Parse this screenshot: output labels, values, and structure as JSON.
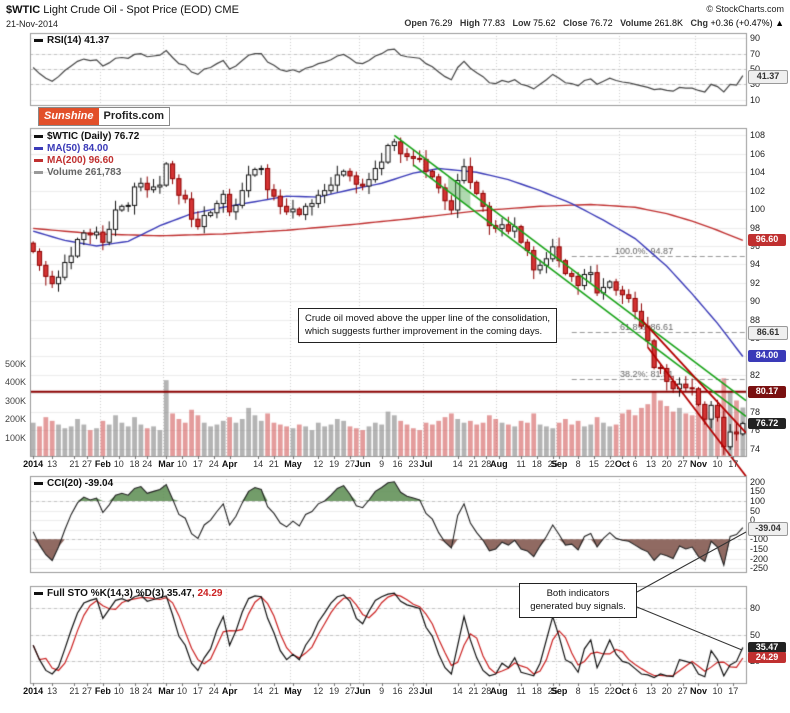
{
  "header": {
    "symbol": "$WTIC",
    "title": " Light Crude Oil - Spot Price (EOD) CME",
    "date": "21-Nov-2014",
    "copyright": "© StockCharts.com",
    "quote": [
      {
        "label": "Open",
        "value": "76.29"
      },
      {
        "label": "High",
        "value": "77.83"
      },
      {
        "label": "Low",
        "value": "75.62"
      },
      {
        "label": "Close",
        "value": "76.72"
      },
      {
        "label": "Volume",
        "value": "261.8K"
      },
      {
        "label": "Chg",
        "value": "+0.36 (+0.47%) ▲"
      }
    ]
  },
  "logo": {
    "sunshine": "Sunshine",
    "profits": "Profits.com"
  },
  "panels": {
    "rsi": {
      "label": "RSI(14) 41.37"
    },
    "main": {
      "legend_symbol": "$WTIC (Daily) 76.72",
      "legend_ma50": "MA(50) 84.00",
      "legend_ma200": "MA(200) 96.60",
      "legend_volume": "Volume 261,783"
    },
    "cci": {
      "label": "CCI(20) -39.04"
    },
    "sto": {
      "label": "Full STO %K(14,3) %D(3)",
      "k_value": "35.47,",
      "d_value": "24.29"
    }
  },
  "annotations": {
    "main_line1": "Crude oil moved above the upper line of the consolidation,",
    "main_line2": "which suggests further improvement in the coming days.",
    "buy_line1": "Both indicators",
    "buy_line2": "generated buy signals."
  },
  "chart_data": {
    "type": "candlestick-with-indicators",
    "title": "$WTIC Light Crude Oil - Spot Price (EOD) CME",
    "sampling_note": "daily data approximated at ~2 trading days per point, Jan 2014 to 21-Nov-2014",
    "first_open": 96.3,
    "closes": [
      95.4,
      93.9,
      92.7,
      91.9,
      92.6,
      94.2,
      94.9,
      96.7,
      97.4,
      97.2,
      97.5,
      96.4,
      97.8,
      99.9,
      100.3,
      100.4,
      102.4,
      102.8,
      102.1,
      102.4,
      102.6,
      104.9,
      103.3,
      101.5,
      101.1,
      98.9,
      98.1,
      99.3,
      99.6,
      100.6,
      101.6,
      99.7,
      100.4,
      102.0,
      103.7,
      104.3,
      104.4,
      102.1,
      101.4,
      100.3,
      99.7,
      100.0,
      99.4,
      100.3,
      100.6,
      101.5,
      102.0,
      102.6,
      103.7,
      104.1,
      103.6,
      102.7,
      102.5,
      103.2,
      104.4,
      105.1,
      106.9,
      107.3,
      106.0,
      105.7,
      105.5,
      105.4,
      104.1,
      103.5,
      102.3,
      100.9,
      99.9,
      103.1,
      104.6,
      102.9,
      101.7,
      100.3,
      98.2,
      97.9,
      98.3,
      97.6,
      98.1,
      96.4,
      95.5,
      93.4,
      93.9,
      94.6,
      95.9,
      94.4,
      93.0,
      92.7,
      91.7,
      92.9,
      93.1,
      90.9,
      91.5,
      92.1,
      91.2,
      90.7,
      90.3,
      88.9,
      87.3,
      85.7,
      82.8,
      82.7,
      81.3,
      80.5,
      81.0,
      80.6,
      80.5,
      78.8,
      77.2,
      78.7,
      77.4,
      74.2,
      75.8,
      75.6,
      76.72
    ],
    "volumes": [
      180,
      160,
      210,
      190,
      170,
      150,
      160,
      200,
      170,
      140,
      150,
      190,
      170,
      220,
      180,
      160,
      210,
      170,
      150,
      160,
      140,
      410,
      230,
      200,
      180,
      250,
      220,
      180,
      160,
      170,
      190,
      210,
      180,
      200,
      260,
      220,
      190,
      230,
      180,
      170,
      160,
      150,
      170,
      160,
      140,
      180,
      160,
      170,
      200,
      190,
      160,
      150,
      140,
      160,
      180,
      170,
      240,
      220,
      190,
      170,
      150,
      140,
      180,
      170,
      190,
      210,
      230,
      200,
      180,
      190,
      170,
      180,
      220,
      200,
      180,
      170,
      160,
      190,
      180,
      230,
      170,
      160,
      150,
      180,
      200,
      170,
      190,
      160,
      170,
      210,
      180,
      160,
      170,
      230,
      250,
      220,
      260,
      280,
      350,
      300,
      270,
      240,
      260,
      230,
      220,
      280,
      260,
      240,
      270,
      420,
      350,
      300,
      262
    ],
    "rsi": [
      52,
      44,
      38,
      34,
      40,
      48,
      54,
      60,
      63,
      61,
      62,
      54,
      58,
      64,
      65,
      64,
      69,
      70,
      66,
      67,
      68,
      74,
      65,
      57,
      55,
      46,
      43,
      50,
      52,
      57,
      61,
      50,
      54,
      61,
      68,
      70,
      70,
      59,
      55,
      49,
      47,
      49,
      46,
      51,
      53,
      57,
      59,
      62,
      67,
      69,
      64,
      58,
      57,
      61,
      67,
      70,
      75,
      76,
      68,
      66,
      65,
      64,
      57,
      53,
      46,
      40,
      36,
      52,
      60,
      51,
      45,
      40,
      32,
      31,
      35,
      33,
      36,
      30,
      28,
      24,
      30,
      36,
      43,
      38,
      32,
      31,
      28,
      35,
      37,
      30,
      34,
      38,
      35,
      33,
      32,
      30,
      28,
      26,
      23,
      24,
      22,
      21,
      26,
      25,
      25,
      22,
      20,
      30,
      27,
      20,
      30,
      29,
      41.37
    ],
    "cci": [
      -60,
      -130,
      -180,
      -210,
      -140,
      -50,
      30,
      90,
      120,
      105,
      115,
      40,
      80,
      130,
      140,
      130,
      165,
      175,
      140,
      150,
      160,
      185,
      110,
      30,
      10,
      -70,
      -95,
      -25,
      0,
      45,
      85,
      -25,
      20,
      90,
      150,
      170,
      160,
      70,
      35,
      -15,
      -35,
      -5,
      -30,
      30,
      45,
      85,
      100,
      130,
      165,
      180,
      135,
      75,
      65,
      105,
      150,
      170,
      195,
      200,
      145,
      125,
      115,
      105,
      35,
      5,
      -65,
      -115,
      -145,
      25,
      85,
      -15,
      -65,
      -105,
      -160,
      -150,
      -115,
      -130,
      -105,
      -150,
      -160,
      -190,
      -135,
      -85,
      -25,
      -75,
      -130,
      -125,
      -155,
      -85,
      -70,
      -140,
      -95,
      -65,
      -95,
      -105,
      -110,
      -130,
      -150,
      -165,
      -210,
      -175,
      -185,
      -200,
      -135,
      -150,
      -140,
      -190,
      -215,
      -110,
      -140,
      -235,
      -85,
      -75,
      -39.04
    ],
    "sto_k": [
      38,
      22,
      10,
      6,
      14,
      34,
      55,
      74,
      85,
      88,
      90,
      68,
      78,
      88,
      90,
      87,
      92,
      94,
      87,
      89,
      91,
      93,
      72,
      48,
      38,
      18,
      10,
      24,
      34,
      55,
      70,
      38,
      54,
      75,
      90,
      93,
      92,
      68,
      52,
      32,
      22,
      28,
      22,
      38,
      48,
      64,
      74,
      85,
      92,
      94,
      87,
      68,
      62,
      76,
      88,
      92,
      95,
      96,
      87,
      83,
      81,
      79,
      58,
      48,
      28,
      13,
      6,
      38,
      70,
      44,
      24,
      10,
      4,
      6,
      18,
      13,
      24,
      8,
      6,
      4,
      18,
      44,
      70,
      48,
      22,
      18,
      8,
      34,
      44,
      13,
      28,
      44,
      28,
      20,
      18,
      12,
      6,
      5,
      2,
      6,
      4,
      3,
      22,
      20,
      18,
      6,
      3,
      32,
      22,
      4,
      16,
      20,
      35.47
    ],
    "ma50": [
      [
        0,
        97.6
      ],
      [
        5,
        96.6
      ],
      [
        10,
        96.0
      ],
      [
        15,
        96.5
      ],
      [
        20,
        98.2
      ],
      [
        25,
        99.5
      ],
      [
        30,
        100.2
      ],
      [
        35,
        100.8
      ],
      [
        40,
        101.4
      ],
      [
        45,
        101.3
      ],
      [
        50,
        102.1
      ],
      [
        55,
        102.8
      ],
      [
        60,
        103.9
      ],
      [
        64,
        104.4
      ],
      [
        70,
        104.0
      ],
      [
        75,
        103.2
      ],
      [
        80,
        102.0
      ],
      [
        85,
        100.6
      ],
      [
        90,
        98.8
      ],
      [
        95,
        96.8
      ],
      [
        100,
        93.8
      ],
      [
        104,
        90.8
      ],
      [
        108,
        87.6
      ],
      [
        112,
        84.0
      ]
    ],
    "ma200": [
      [
        0,
        97.9
      ],
      [
        10,
        97.3
      ],
      [
        20,
        97.1
      ],
      [
        30,
        97.3
      ],
      [
        40,
        97.7
      ],
      [
        50,
        98.3
      ],
      [
        60,
        99.0
      ],
      [
        70,
        99.8
      ],
      [
        80,
        100.3
      ],
      [
        88,
        100.5
      ],
      [
        95,
        100.2
      ],
      [
        100,
        99.5
      ],
      [
        104,
        98.7
      ],
      [
        108,
        97.7
      ],
      [
        112,
        96.6
      ]
    ],
    "lines": {
      "green": [
        [
          57,
          108.0,
          112.5,
          79.2
        ],
        [
          60,
          104.8,
          112.5,
          77.5
        ]
      ],
      "red": [
        [
          96,
          88.0,
          112.5,
          75.7
        ],
        [
          97,
          85.0,
          112.5,
          71.0
        ]
      ],
      "support": 80.17,
      "highlight": {
        "i1": 65.5,
        "i2": 69
      }
    },
    "fib": [
      {
        "label": "100.0%: 94.87",
        "v": 94.87
      },
      {
        "label": "61.8%: 86.61",
        "v": 86.61
      },
      {
        "label": "38.2%: 81.51",
        "v": 81.51
      }
    ],
    "fib_from": 85,
    "axes": {
      "rsi": {
        "min": 3,
        "max": 97,
        "ticks": [
          90,
          70,
          50,
          30,
          10
        ],
        "dashed": [
          70,
          50,
          30
        ]
      },
      "main": {
        "min": 73.2,
        "max": 108.8,
        "ticks": [
          108,
          106,
          104,
          102,
          100,
          98,
          96,
          94,
          92,
          90,
          88,
          86,
          84,
          82,
          80,
          78,
          76,
          74
        ],
        "dashed": []
      },
      "cci": {
        "min": -270,
        "max": 230,
        "ticks": [
          200,
          150,
          100,
          50,
          0,
          -50,
          -100,
          -150,
          -200,
          -250
        ],
        "dashed": [
          100,
          -100
        ]
      },
      "sto": {
        "min": -4,
        "max": 104,
        "ticks": [
          80,
          50,
          20
        ],
        "dashed": [
          80,
          50,
          20
        ]
      }
    },
    "volume_axis": [
      500,
      400,
      300,
      200,
      100
    ],
    "tags": [
      {
        "panel": "rsi",
        "v": 41.37,
        "text": "41.37",
        "bg": "#efefef",
        "fg": "#333",
        "border": "#999"
      },
      {
        "panel": "main",
        "v": 96.6,
        "text": "96.60",
        "bg": "#c03030",
        "fg": "#fff"
      },
      {
        "panel": "main",
        "v": 86.61,
        "text": "86.61",
        "bg": "#efefef",
        "fg": "#333",
        "border": "#999"
      },
      {
        "panel": "main",
        "v": 84.0,
        "text": "84.00",
        "bg": "#3a3ab8",
        "fg": "#fff"
      },
      {
        "panel": "main",
        "v": 80.17,
        "text": "80.17",
        "bg": "#7a1010",
        "fg": "#fff"
      },
      {
        "panel": "main",
        "v": 76.72,
        "text": "76.72",
        "bg": "#222222",
        "fg": "#fff"
      },
      {
        "panel": "cci",
        "v": -39.04,
        "text": "-39.04",
        "bg": "#efefef",
        "fg": "#333",
        "border": "#999"
      },
      {
        "panel": "sto",
        "v": 35.47,
        "text": "35.47",
        "bg": "#222222",
        "fg": "#fff"
      },
      {
        "panel": "sto",
        "v": 24.29,
        "text": "24.29",
        "bg": "#c03030",
        "fg": "#fff"
      }
    ],
    "x_labels": [
      {
        "t": "2014",
        "i": 0,
        "m": true
      },
      {
        "t": "13",
        "i": 3
      },
      {
        "t": "21",
        "i": 6.5
      },
      {
        "t": "27",
        "i": 8.5
      },
      {
        "t": "Feb",
        "i": 11,
        "m": true
      },
      {
        "t": "10",
        "i": 13.5
      },
      {
        "t": "18",
        "i": 16
      },
      {
        "t": "24",
        "i": 18
      },
      {
        "t": "Mar",
        "i": 21,
        "m": true
      },
      {
        "t": "10",
        "i": 23.5
      },
      {
        "t": "17",
        "i": 26
      },
      {
        "t": "24",
        "i": 28.5
      },
      {
        "t": "Apr",
        "i": 31,
        "m": true
      },
      {
        "t": "14",
        "i": 35.5
      },
      {
        "t": "21",
        "i": 38
      },
      {
        "t": "May",
        "i": 41,
        "m": true
      },
      {
        "t": "12",
        "i": 45
      },
      {
        "t": "19",
        "i": 47.5
      },
      {
        "t": "27",
        "i": 50
      },
      {
        "t": "Jun",
        "i": 52,
        "m": true
      },
      {
        "t": "9",
        "i": 55
      },
      {
        "t": "16",
        "i": 57.5
      },
      {
        "t": "23",
        "i": 60
      },
      {
        "t": "Jul",
        "i": 62,
        "m": true
      },
      {
        "t": "14",
        "i": 67
      },
      {
        "t": "21",
        "i": 69.5
      },
      {
        "t": "28",
        "i": 71.5
      },
      {
        "t": "Aug",
        "i": 73.5,
        "m": true
      },
      {
        "t": "11",
        "i": 77
      },
      {
        "t": "18",
        "i": 79.5
      },
      {
        "t": "25",
        "i": 82
      },
      {
        "t": "Sep",
        "i": 83,
        "m": true
      },
      {
        "t": "8",
        "i": 86
      },
      {
        "t": "15",
        "i": 88.5
      },
      {
        "t": "22",
        "i": 91
      },
      {
        "t": "Oct",
        "i": 93,
        "m": true
      },
      {
        "t": "6",
        "i": 95
      },
      {
        "t": "13",
        "i": 97.5
      },
      {
        "t": "20",
        "i": 100
      },
      {
        "t": "27",
        "i": 102.5
      },
      {
        "t": "Nov",
        "i": 105,
        "m": true
      },
      {
        "t": "10",
        "i": 108
      },
      {
        "t": "17",
        "i": 110.5
      }
    ],
    "colors": {
      "up": "#ffffff",
      "up_border": "#111111",
      "down": "#d43434",
      "down_border": "#8e0000",
      "ma50": "#3a3ab8",
      "ma200": "#c03030",
      "vol_up": "rgba(130,130,130,0.6)",
      "vol_down": "rgba(210,90,90,0.6)",
      "channel_green": "#17a317",
      "channel_red": "#b30000",
      "support": "#8b0000",
      "rsi": "#444444",
      "cci": "#222222",
      "cci_above": "rgba(90,140,80,0.85)",
      "cci_below": "rgba(125,80,70,0.85)",
      "sto_k": "#111111",
      "sto_d": "#cc2222"
    }
  }
}
